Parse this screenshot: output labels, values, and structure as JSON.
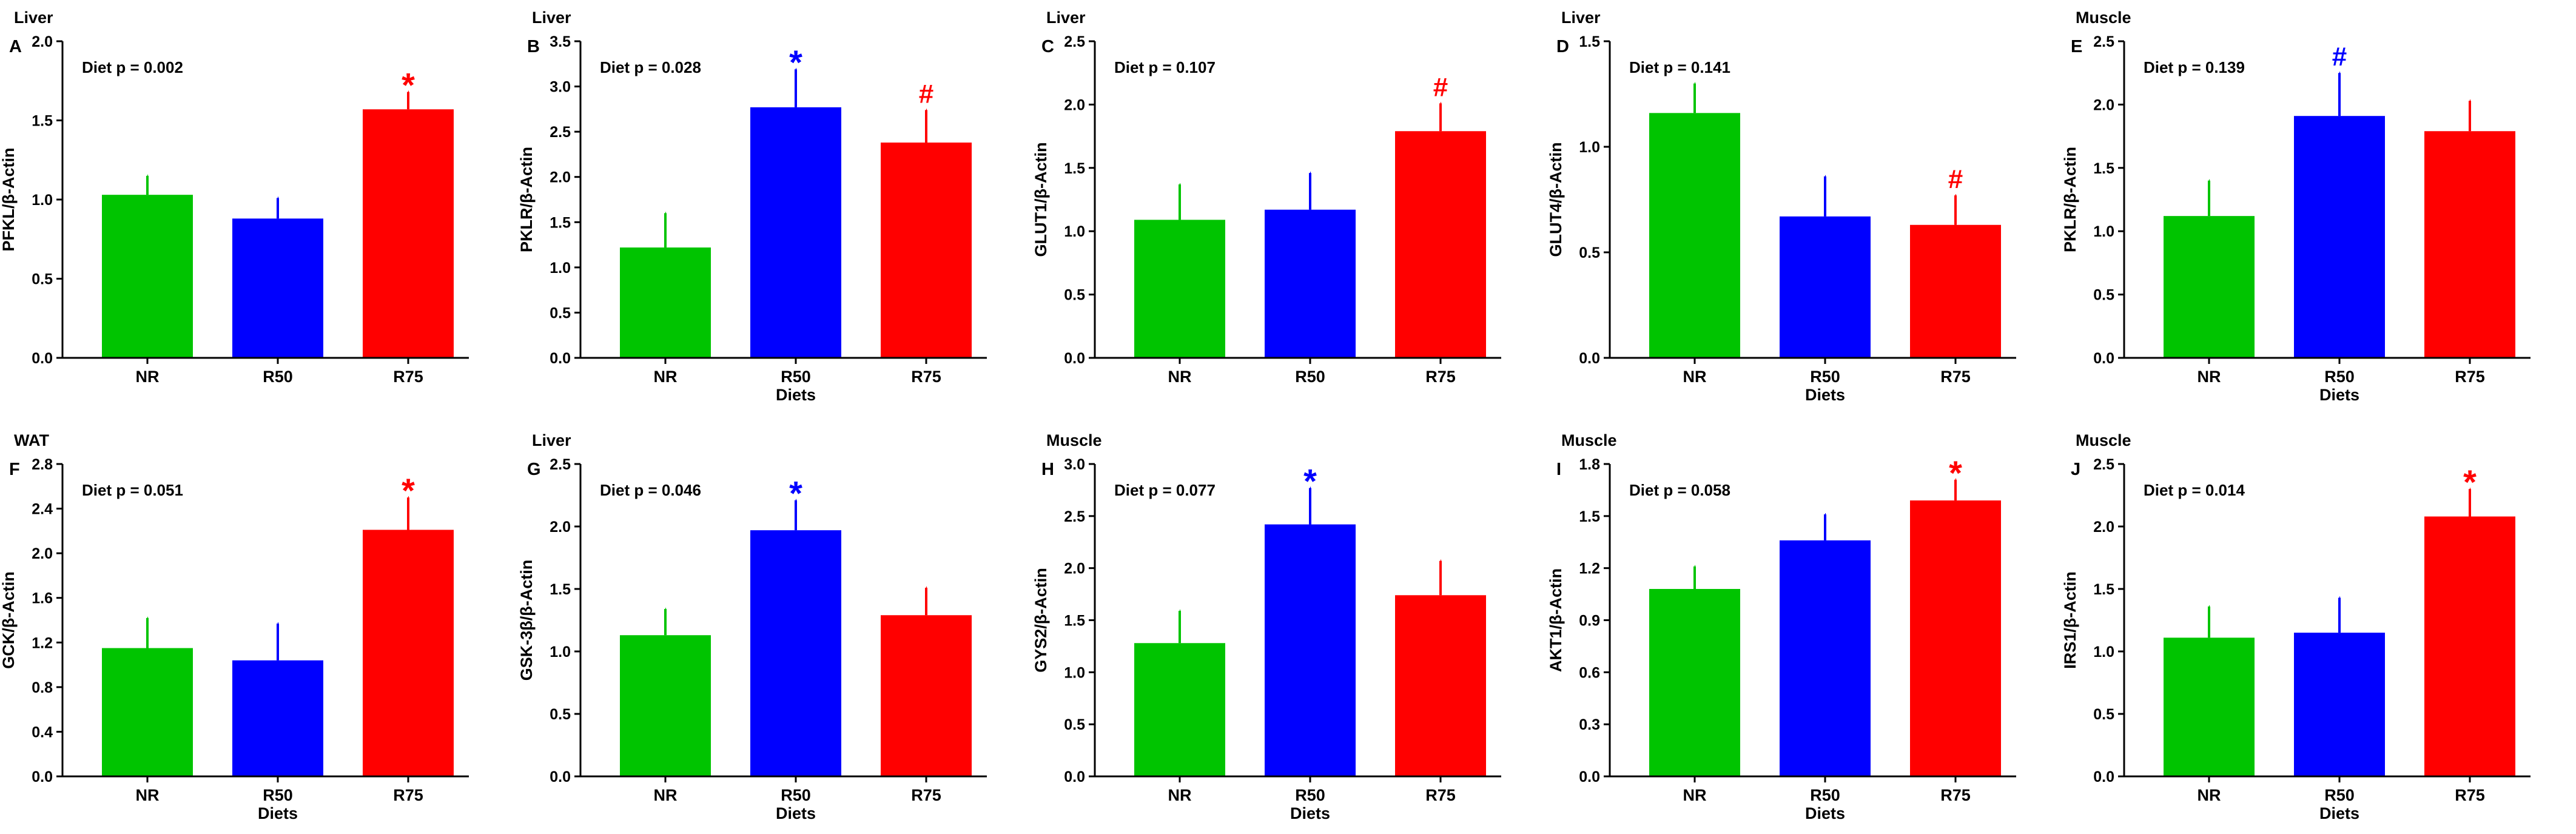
{
  "colors": {
    "NR": "#00C400",
    "R50": "#0000FF",
    "R75": "#FF0000"
  },
  "chart_data": [
    {
      "type": "bar",
      "panel": "A",
      "tissue": "Liver",
      "ylabel": "PFKL/β-Actin",
      "categories": [
        "NR",
        "R50",
        "R75"
      ],
      "values": [
        1.03,
        0.88,
        1.57
      ],
      "errors": [
        0.12,
        0.13,
        0.11
      ],
      "ylim": [
        0,
        2.0
      ],
      "yticks": [
        "0.0",
        "0.5",
        "1.0",
        "1.5",
        "2.0"
      ],
      "xlabel": "",
      "p_label": "Diet p = 0.002",
      "markers": [
        null,
        null,
        {
          "symbol": "*",
          "color": "#FF0000"
        }
      ]
    },
    {
      "type": "bar",
      "panel": "B",
      "tissue": "Liver",
      "ylabel": "PKLR/β-Actin",
      "categories": [
        "NR",
        "R50",
        "R75"
      ],
      "values": [
        1.22,
        2.77,
        2.38
      ],
      "errors": [
        0.38,
        0.42,
        0.36
      ],
      "ylim": [
        0,
        3.5
      ],
      "yticks": [
        "0.0",
        "0.5",
        "1.0",
        "1.5",
        "2.0",
        "2.5",
        "3.0",
        "3.5"
      ],
      "xlabel": "Diets",
      "p_label": "Diet p = 0.028",
      "markers": [
        null,
        {
          "symbol": "*",
          "color": "#0000FF"
        },
        {
          "symbol": "#",
          "color": "#FF0000"
        }
      ]
    },
    {
      "type": "bar",
      "panel": "C",
      "tissue": "Liver",
      "ylabel": "GLUT1/β-Actin",
      "categories": [
        "NR",
        "R50",
        "R75"
      ],
      "values": [
        1.09,
        1.17,
        1.79
      ],
      "errors": [
        0.28,
        0.29,
        0.22
      ],
      "ylim": [
        0,
        2.5
      ],
      "yticks": [
        "0.0",
        "0.5",
        "1.0",
        "1.5",
        "2.0",
        "2.5"
      ],
      "xlabel": "",
      "p_label": "Diet p = 0.107",
      "markers": [
        null,
        null,
        {
          "symbol": "#",
          "color": "#FF0000"
        }
      ]
    },
    {
      "type": "bar",
      "panel": "D",
      "tissue": "Liver",
      "ylabel": "GLUT4/β-Actin",
      "categories": [
        "NR",
        "R50",
        "R75"
      ],
      "values": [
        1.16,
        0.67,
        0.63
      ],
      "errors": [
        0.14,
        0.19,
        0.14
      ],
      "ylim": [
        0,
        1.5
      ],
      "yticks": [
        "0.0",
        "0.5",
        "1.0",
        "1.5"
      ],
      "xlabel": "Diets",
      "p_label": "Diet p = 0.141",
      "markers": [
        null,
        null,
        {
          "symbol": "#",
          "color": "#FF0000"
        }
      ]
    },
    {
      "type": "bar",
      "panel": "E",
      "tissue": "Muscle",
      "ylabel": "PKLR/β-Actin",
      "categories": [
        "NR",
        "R50",
        "R75"
      ],
      "values": [
        1.12,
        1.91,
        1.79
      ],
      "errors": [
        0.28,
        0.34,
        0.24
      ],
      "ylim": [
        0,
        2.5
      ],
      "yticks": [
        "0.0",
        "0.5",
        "1.0",
        "1.5",
        "2.0",
        "2.5"
      ],
      "xlabel": "Diets",
      "p_label": "Diet p = 0.139",
      "markers": [
        null,
        {
          "symbol": "#",
          "color": "#0000FF"
        },
        null
      ]
    },
    {
      "type": "bar",
      "panel": "F",
      "tissue": "WAT",
      "ylabel": "GCK/β-Actin",
      "categories": [
        "NR",
        "R50",
        "R75"
      ],
      "values": [
        1.15,
        1.04,
        2.21
      ],
      "errors": [
        0.27,
        0.33,
        0.29
      ],
      "ylim": [
        0,
        2.8
      ],
      "yticks": [
        "0.0",
        "0.4",
        "0.8",
        "1.2",
        "1.6",
        "2.0",
        "2.4",
        "2.8"
      ],
      "xlabel": "Diets",
      "p_label": "Diet p = 0.051",
      "markers": [
        null,
        null,
        {
          "symbol": "*",
          "color": "#FF0000"
        }
      ]
    },
    {
      "type": "bar",
      "panel": "G",
      "tissue": "Liver",
      "ylabel": "GSK-3β/β-Actin",
      "categories": [
        "NR",
        "R50",
        "R75"
      ],
      "values": [
        1.13,
        1.97,
        1.29
      ],
      "errors": [
        0.21,
        0.24,
        0.22
      ],
      "ylim": [
        0,
        2.5
      ],
      "yticks": [
        "0.0",
        "0.5",
        "1.0",
        "1.5",
        "2.0",
        "2.5"
      ],
      "xlabel": "Diets",
      "p_label": "Diet p = 0.046",
      "markers": [
        null,
        {
          "symbol": "*",
          "color": "#0000FF"
        },
        null
      ]
    },
    {
      "type": "bar",
      "panel": "H",
      "tissue": "Muscle",
      "ylabel": "GYS2/β-Actin",
      "categories": [
        "NR",
        "R50",
        "R75"
      ],
      "values": [
        1.28,
        2.42,
        1.74
      ],
      "errors": [
        0.31,
        0.35,
        0.33
      ],
      "ylim": [
        0,
        3.0
      ],
      "yticks": [
        "0.0",
        "0.5",
        "1.0",
        "1.5",
        "2.0",
        "2.5",
        "3.0"
      ],
      "xlabel": "Diets",
      "p_label": "Diet p = 0.077",
      "markers": [
        null,
        {
          "symbol": "*",
          "color": "#0000FF"
        },
        null
      ]
    },
    {
      "type": "bar",
      "panel": "I",
      "tissue": "Muscle",
      "ylabel": "AKT1/β-Actin",
      "categories": [
        "NR",
        "R50",
        "R75"
      ],
      "values": [
        1.08,
        1.36,
        1.59
      ],
      "errors": [
        0.13,
        0.15,
        0.12
      ],
      "ylim": [
        0,
        1.8
      ],
      "yticks": [
        "0.0",
        "0.3",
        "0.6",
        "0.9",
        "1.2",
        "1.5",
        "1.8"
      ],
      "xlabel": "Diets",
      "p_label": "Diet p = 0.058",
      "markers": [
        null,
        null,
        {
          "symbol": "*",
          "color": "#FF0000"
        }
      ]
    },
    {
      "type": "bar",
      "panel": "J",
      "tissue": "Muscle",
      "ylabel": "IRS1/β-Actin",
      "categories": [
        "NR",
        "R50",
        "R75"
      ],
      "values": [
        1.11,
        1.15,
        2.08
      ],
      "errors": [
        0.25,
        0.28,
        0.22
      ],
      "ylim": [
        0,
        2.5
      ],
      "yticks": [
        "0.0",
        "0.5",
        "1.0",
        "1.5",
        "2.0",
        "2.5"
      ],
      "xlabel": "Diets",
      "p_label": "Diet p = 0.014",
      "markers": [
        null,
        null,
        {
          "symbol": "*",
          "color": "#FF0000"
        }
      ]
    }
  ]
}
